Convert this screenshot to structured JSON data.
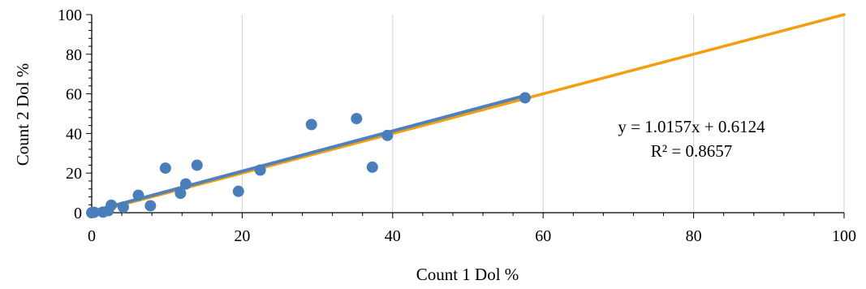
{
  "chart_data": {
    "type": "scatter",
    "title": "",
    "xlabel": "Count 1 Dol %",
    "ylabel": "Count 2 Dol %",
    "xlim": [
      0,
      100
    ],
    "ylim": [
      0,
      100
    ],
    "xticks": [
      0,
      20,
      40,
      60,
      80,
      100
    ],
    "yticks": [
      0,
      20,
      40,
      60,
      80,
      100
    ],
    "grid": "vertical",
    "legend": "none",
    "series": [
      {
        "type": "scatter",
        "color": "#4a7ebb",
        "points": [
          [
            0,
            0
          ],
          [
            0.3,
            0.2
          ],
          [
            1.5,
            0.3
          ],
          [
            2.2,
            1.0
          ],
          [
            2.6,
            3.8
          ],
          [
            4.2,
            2.8
          ],
          [
            6.2,
            8.8
          ],
          [
            7.8,
            3.5
          ],
          [
            9.8,
            22.5
          ],
          [
            11.8,
            9.8
          ],
          [
            12.5,
            14.5
          ],
          [
            14.0,
            24.0
          ],
          [
            19.5,
            10.8
          ],
          [
            22.4,
            21.5
          ],
          [
            29.2,
            44.5
          ],
          [
            35.2,
            47.5
          ],
          [
            37.3,
            23.0
          ],
          [
            39.3,
            39.0
          ],
          [
            57.6,
            58.0
          ]
        ]
      }
    ],
    "reference_lines": [
      {
        "kind": "trendline",
        "color": "#4f81bd",
        "slope": 1.0157,
        "intercept": 0.6124,
        "x_range": [
          0,
          57.6
        ]
      },
      {
        "kind": "one-to-one",
        "color": "#f59d0e",
        "slope": 1,
        "intercept": 0,
        "x_range": [
          0,
          100
        ]
      }
    ],
    "annotations": {
      "equation": "y = 1.0157x + 0.6124",
      "r_squared": "R² = 0.8657"
    }
  },
  "colors": {
    "grid": "#d9d9d9",
    "axis": "#000000",
    "markers": "#4a7ebb",
    "trendline": "#4f81bd",
    "one_to_one": "#f59d0e"
  }
}
